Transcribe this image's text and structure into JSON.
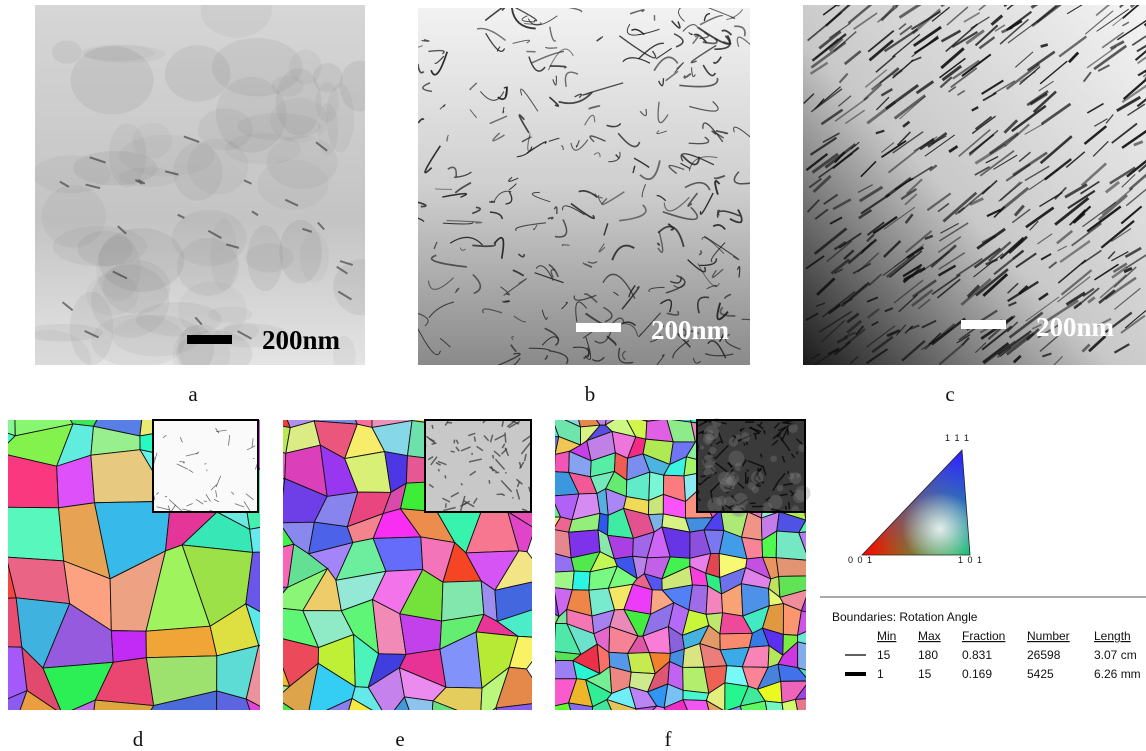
{
  "panels": [
    {
      "label": "a",
      "scale_bar": "200nm"
    },
    {
      "label": "b",
      "scale_bar": "200nm"
    },
    {
      "label": "c",
      "scale_bar": "200nm"
    },
    {
      "label": "d"
    },
    {
      "label": "e"
    },
    {
      "label": "f"
    }
  ],
  "ipf_legend": {
    "corners": [
      "0 0 1",
      "1 0 1",
      "1 1 1"
    ]
  },
  "boundaries": {
    "title": "Boundaries: Rotation Angle",
    "columns": [
      "Min",
      "Max",
      "Fraction",
      "Number",
      "Length"
    ],
    "rows": [
      [
        "15",
        "180",
        "0.831",
        "26598",
        "3.07 cm"
      ],
      [
        "1",
        "15",
        "0.169",
        "5425",
        "6.26 mm"
      ]
    ]
  }
}
